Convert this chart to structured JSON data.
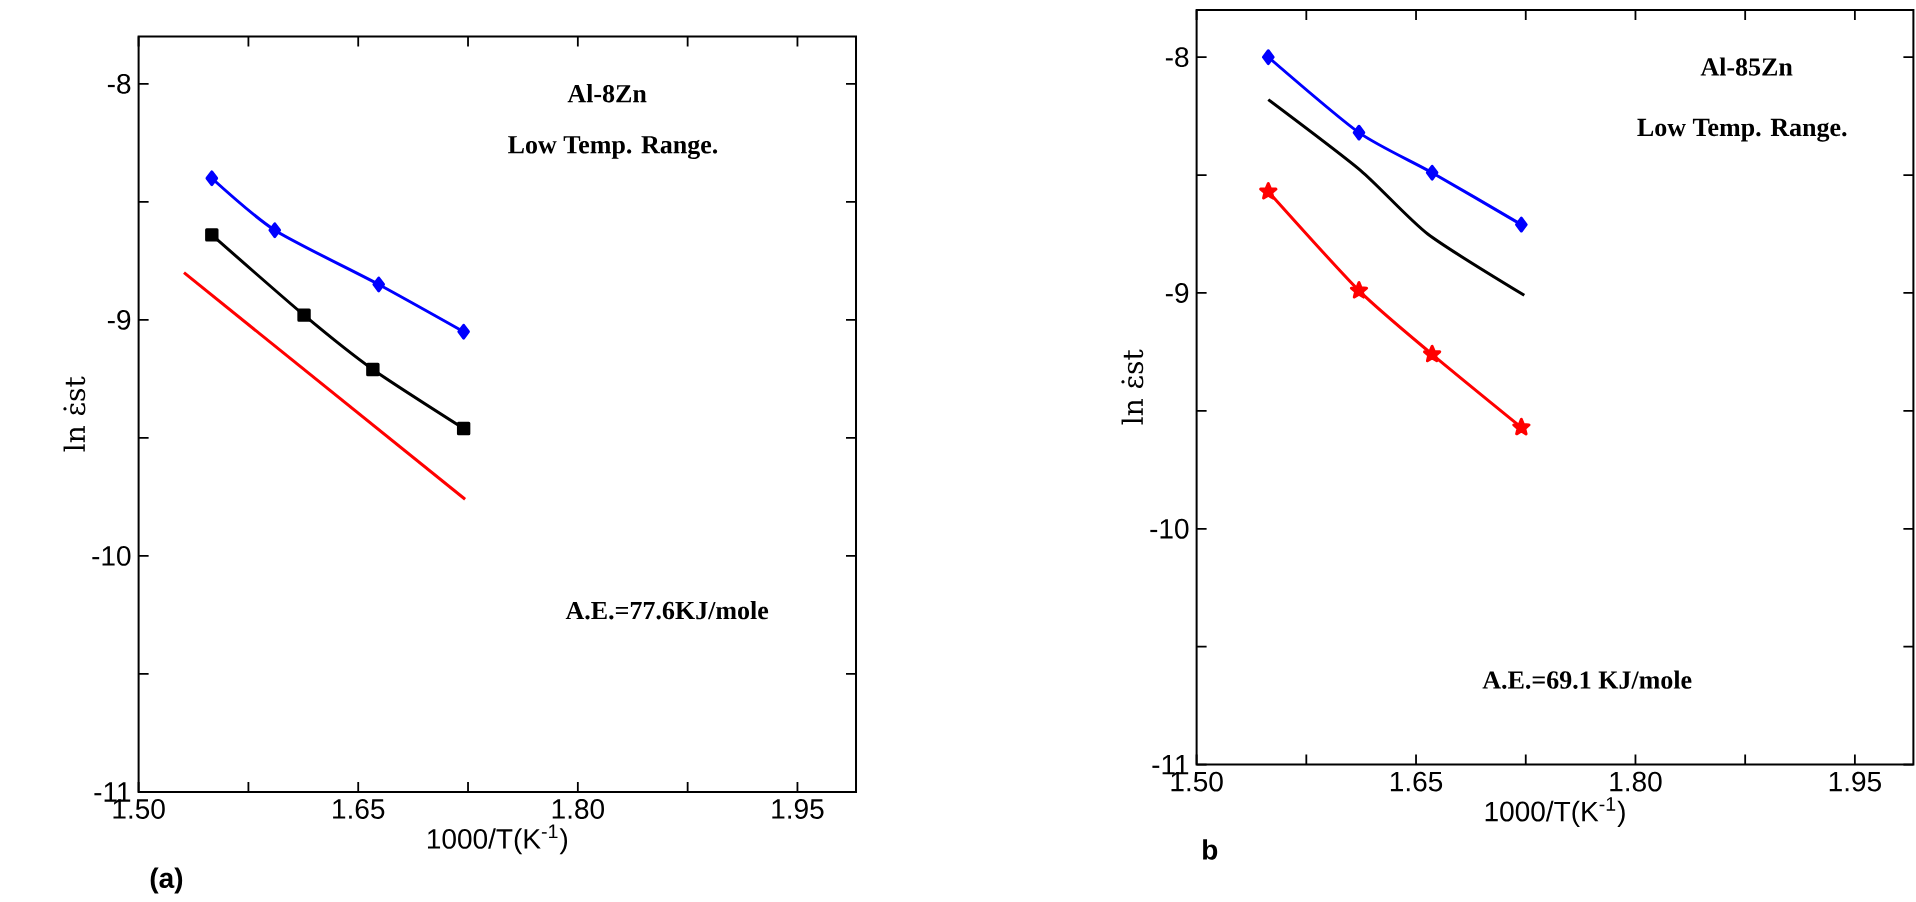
{
  "chart_data": [
    {
      "type": "line",
      "xlabel": "1000/T(K$^{-1}$)",
      "ylabel": "ln ε̇st",
      "xlim": [
        1.5,
        1.99
      ],
      "ylim": [
        -11,
        -7.8
      ],
      "xticks": [
        {
          "value": 1.5,
          "label": "1.50"
        },
        {
          "value": 1.575,
          "label": null
        },
        {
          "value": 1.65,
          "label": "1.65"
        },
        {
          "value": 1.725,
          "label": null
        },
        {
          "value": 1.8,
          "label": "1.80"
        },
        {
          "value": 1.875,
          "label": null
        },
        {
          "value": 1.95,
          "label": "1.95"
        }
      ],
      "yticks": [
        -11,
        {
          "value": -10.5,
          "label": null
        },
        -10,
        {
          "value": -9.5,
          "label": null
        },
        -9,
        {
          "value": -8.5,
          "label": null
        },
        -8
      ],
      "series": [
        {
          "color": "#0000ff",
          "marker": "diamond",
          "x": [
            1.55,
            1.593,
            1.664,
            1.722
          ],
          "values": [
            -8.4,
            -8.62,
            -8.85,
            -9.05
          ]
        },
        {
          "color": "#000000",
          "marker": "square",
          "x": [
            1.55,
            1.613,
            1.66,
            1.722
          ],
          "values": [
            -8.64,
            -8.98,
            -9.21,
            -9.46
          ]
        },
        {
          "color": "#ff0000",
          "marker": "none",
          "x": [
            1.531,
            1.723
          ],
          "values": [
            -8.8,
            -9.76
          ]
        }
      ],
      "annotations": [
        "Al-8Zn",
        "Low Temp. Range.",
        "A.E.=77.6KJ/mole",
        "(a)"
      ]
    },
    {
      "type": "line",
      "xlabel": "1000/T(K$^{-1}$)",
      "ylabel": "ln ε̇st",
      "xlim": [
        1.5,
        1.99
      ],
      "ylim": [
        -11,
        -7.8
      ],
      "xticks": [
        {
          "value": 1.5,
          "label": "1.50"
        },
        {
          "value": 1.575,
          "label": null
        },
        {
          "value": 1.65,
          "label": "1.65"
        },
        {
          "value": 1.725,
          "label": null
        },
        {
          "value": 1.8,
          "label": "1.80"
        },
        {
          "value": 1.875,
          "label": null
        },
        {
          "value": 1.95,
          "label": "1.95"
        }
      ],
      "yticks": [
        -11,
        {
          "value": -10.5,
          "label": null
        },
        -10,
        {
          "value": -9.5,
          "label": null
        },
        -9,
        {
          "value": -8.5,
          "label": null
        },
        -8
      ],
      "series": [
        {
          "color": "#0000ff",
          "marker": "diamond",
          "x": [
            1.549,
            1.611,
            1.661,
            1.722
          ],
          "values": [
            -8.0,
            -8.32,
            -8.49,
            -8.71
          ]
        },
        {
          "color": "#000000",
          "marker": "none",
          "x": [
            1.549,
            1.612,
            1.658,
            1.724
          ],
          "values": [
            -8.18,
            -8.48,
            -8.75,
            -9.01
          ]
        },
        {
          "color": "#ff0000",
          "marker": "star",
          "x": [
            1.549,
            1.611,
            1.661,
            1.722
          ],
          "values": [
            -8.57,
            -8.99,
            -9.26,
            -9.57
          ]
        }
      ],
      "annotations": [
        "Al-85Zn",
        "Low Temp. Range.",
        "A.E.=69.1 KJ/mole",
        "b"
      ]
    }
  ]
}
